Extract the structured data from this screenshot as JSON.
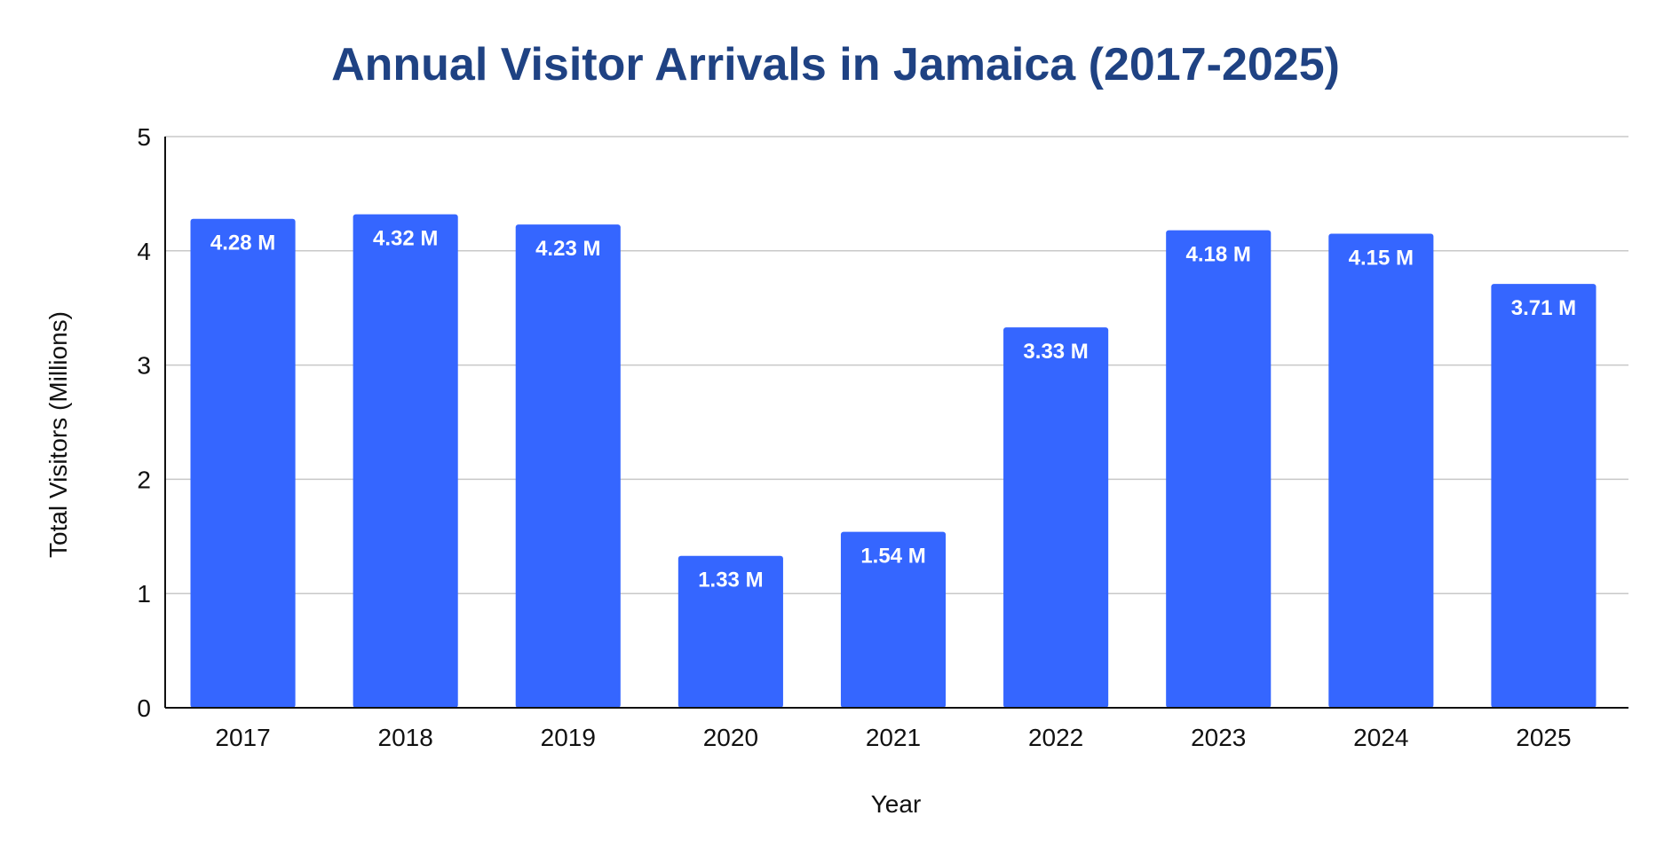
{
  "chart_data": {
    "type": "bar",
    "title": "Annual Visitor Arrivals in Jamaica (2017-2025)",
    "xlabel": "Year",
    "ylabel": "Total Visitors (Millions)",
    "categories": [
      "2017",
      "2018",
      "2019",
      "2020",
      "2021",
      "2022",
      "2023",
      "2024",
      "2025"
    ],
    "values": [
      4.28,
      4.32,
      4.23,
      1.33,
      1.54,
      3.33,
      4.18,
      4.15,
      3.71
    ],
    "data_labels": [
      "4.28 M",
      "4.32 M",
      "4.23 M",
      "1.33 M",
      "1.54 M",
      "3.33 M",
      "4.18 M",
      "4.15 M",
      "3.71 M"
    ],
    "ylim": [
      0,
      5
    ],
    "yticks": [
      "0",
      "1",
      "2",
      "3",
      "4",
      "5"
    ],
    "grid": true,
    "legend": "none",
    "colors": {
      "bar": "#3566ff",
      "title": "#1f4283",
      "grid": "#c8c8c8",
      "axis": "#111111",
      "data_label": "#ffffff"
    }
  }
}
